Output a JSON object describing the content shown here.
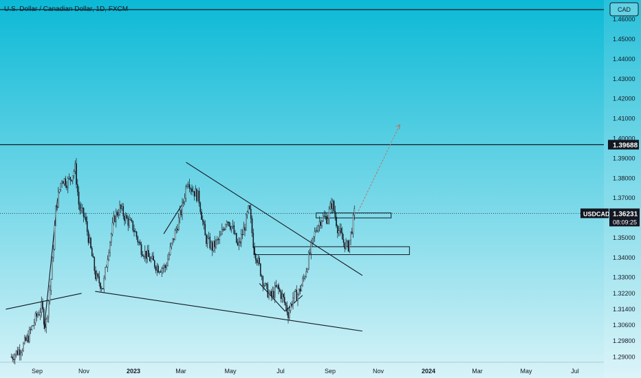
{
  "header": {
    "title": "U.S. Dollar / Canadian Dollar, 1D, FXCM",
    "currency_button": "CAD"
  },
  "colors": {
    "background_top": "#0bb9d6",
    "background_bottom": "#d7f3f8",
    "candle_up": "#131722",
    "candle_down": "#131722",
    "line": "#131722",
    "projection_arrow": "#b07a6a",
    "label_bg": "#131722",
    "label_text": "#ffffff"
  },
  "chart_data": {
    "type": "candlestick",
    "symbol": "USDCAD",
    "timeframe": "1D",
    "source": "FXCM",
    "y_ticks": [
      "1.46000",
      "1.45000",
      "1.44000",
      "1.43000",
      "1.42000",
      "1.41000",
      "1.40000",
      "1.39000",
      "1.38000",
      "1.37000",
      "1.35000",
      "1.34000",
      "1.33000",
      "1.32200",
      "1.31400",
      "1.30600",
      "1.29800",
      "1.29000"
    ],
    "x_ticks": [
      "Sep",
      "Nov",
      "2023",
      "Mar",
      "May",
      "Jul",
      "Sep",
      "Nov",
      "2024",
      "Mar",
      "May",
      "Jul"
    ],
    "ylim": [
      1.287,
      1.468
    ],
    "price_labels": [
      {
        "label": "",
        "value": "1.39688",
        "price": 1.39688
      },
      {
        "label": "USDCAD",
        "value": "1.36231",
        "countdown": "08:09:25",
        "price": 1.36231
      }
    ],
    "horizontal_levels": [
      1.467,
      1.39688
    ],
    "close_path": [
      [
        "2022-08-01",
        1.29
      ],
      [
        "2022-08-15",
        1.295
      ],
      [
        "2022-08-22",
        1.3
      ],
      [
        "2022-09-01",
        1.31
      ],
      [
        "2022-09-08",
        1.315
      ],
      [
        "2022-09-13",
        1.305
      ],
      [
        "2022-09-20",
        1.33
      ],
      [
        "2022-09-26",
        1.365
      ],
      [
        "2022-10-03",
        1.38
      ],
      [
        "2022-10-10",
        1.378
      ],
      [
        "2022-10-14",
        1.38
      ],
      [
        "2022-10-20",
        1.385
      ],
      [
        "2022-10-25",
        1.365
      ],
      [
        "2022-11-01",
        1.36
      ],
      [
        "2022-11-08",
        1.345
      ],
      [
        "2022-11-15",
        1.33
      ],
      [
        "2022-11-24",
        1.325
      ],
      [
        "2022-12-01",
        1.345
      ],
      [
        "2022-12-08",
        1.36
      ],
      [
        "2022-12-15",
        1.365
      ],
      [
        "2022-12-22",
        1.36
      ],
      [
        "2023-01-01",
        1.355
      ],
      [
        "2023-01-10",
        1.345
      ],
      [
        "2023-01-20",
        1.34
      ],
      [
        "2023-02-01",
        1.335
      ],
      [
        "2023-02-10",
        1.335
      ],
      [
        "2023-02-17",
        1.345
      ],
      [
        "2023-02-24",
        1.355
      ],
      [
        "2023-03-03",
        1.365
      ],
      [
        "2023-03-10",
        1.38
      ],
      [
        "2023-03-15",
        1.375
      ],
      [
        "2023-03-24",
        1.37
      ],
      [
        "2023-04-01",
        1.35
      ],
      [
        "2023-04-10",
        1.345
      ],
      [
        "2023-04-20",
        1.35
      ],
      [
        "2023-04-28",
        1.36
      ],
      [
        "2023-05-05",
        1.355
      ],
      [
        "2023-05-12",
        1.345
      ],
      [
        "2023-05-20",
        1.355
      ],
      [
        "2023-05-26",
        1.365
      ],
      [
        "2023-06-01",
        1.345
      ],
      [
        "2023-06-08",
        1.335
      ],
      [
        "2023-06-15",
        1.325
      ],
      [
        "2023-06-22",
        1.32
      ],
      [
        "2023-06-30",
        1.325
      ],
      [
        "2023-07-07",
        1.32
      ],
      [
        "2023-07-14",
        1.312
      ],
      [
        "2023-07-20",
        1.32
      ],
      [
        "2023-07-27",
        1.322
      ],
      [
        "2023-08-03",
        1.33
      ],
      [
        "2023-08-10",
        1.342
      ],
      [
        "2023-08-18",
        1.355
      ],
      [
        "2023-08-25",
        1.36
      ],
      [
        "2023-09-01",
        1.36
      ],
      [
        "2023-09-07",
        1.368
      ],
      [
        "2023-09-14",
        1.355
      ],
      [
        "2023-09-21",
        1.348
      ],
      [
        "2023-09-27",
        1.345
      ],
      [
        "2023-10-02",
        1.355
      ],
      [
        "2023-10-05",
        1.3623
      ]
    ],
    "zones": [
      {
        "from": "2023-08-18",
        "to": "2023-11-20",
        "low": 1.36,
        "high": 1.3625
      },
      {
        "from": "2023-06-01",
        "to": "2023-12-13",
        "low": 1.3415,
        "high": 1.3455
      }
    ],
    "trendlines": [
      {
        "from": [
          "2022-07-25",
          1.314
        ],
        "to": [
          "2022-10-28",
          1.322
        ]
      },
      {
        "from": [
          "2022-11-14",
          1.323
        ],
        "to": [
          "2023-10-15",
          1.303
        ]
      },
      {
        "from": [
          "2023-03-08",
          1.388
        ],
        "to": [
          "2023-10-15",
          1.331
        ]
      },
      {
        "from": [
          "2022-09-11",
          1.304
        ],
        "to": [
          "2022-09-28",
          1.37
        ]
      },
      {
        "from": [
          "2023-02-08",
          1.352
        ],
        "to": [
          "2023-03-05",
          1.368
        ]
      },
      {
        "from": [
          "2023-06-08",
          1.327
        ],
        "to": [
          "2023-07-10",
          1.313
        ]
      },
      {
        "from": [
          "2023-07-10",
          1.313
        ],
        "to": [
          "2023-08-01",
          1.321
        ]
      }
    ],
    "projection": {
      "from": [
        "2023-10-10",
        1.3635
      ],
      "to": [
        "2023-12-01",
        1.407
      ]
    }
  }
}
